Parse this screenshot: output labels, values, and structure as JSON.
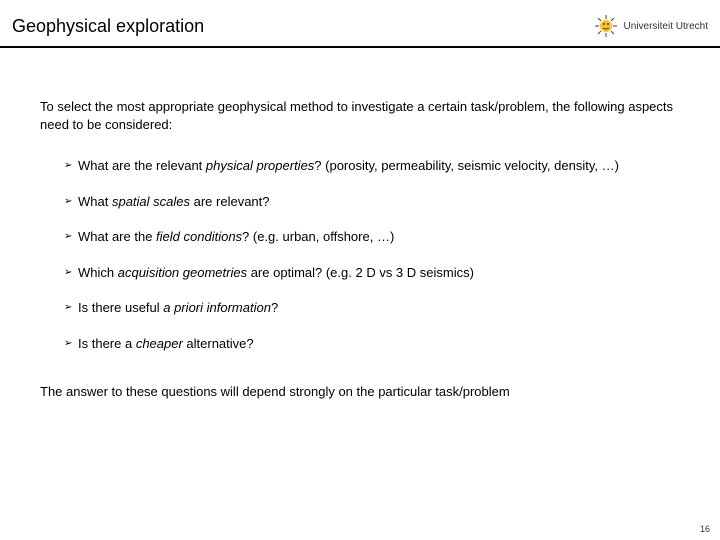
{
  "header": {
    "title": "Geophysical exploration",
    "institution": "Universiteit Utrecht"
  },
  "intro": "To select the most appropriate geophysical method to investigate a certain task/problem, the following aspects need to be considered:",
  "bullets": [
    {
      "pre": "What are the relevant ",
      "em": "physical properties",
      "post": "? (porosity, permeability, seismic velocity, density, …)"
    },
    {
      "pre": "What ",
      "em": "spatial scales",
      "post": " are relevant?"
    },
    {
      "pre": "What are the ",
      "em": "field conditions",
      "post": "? (e.g. urban, offshore, …)"
    },
    {
      "pre": "Which ",
      "em": "acquisition geometries",
      "post": " are optimal? (e.g. 2 D vs 3 D seismics)"
    },
    {
      "pre": "Is there useful ",
      "em": "a priori information",
      "post": "?"
    },
    {
      "pre": "Is there a ",
      "em": "cheaper",
      "post": " alternative?"
    }
  ],
  "closing": "The answer to these questions will depend strongly on the particular task/problem",
  "page_number": "16",
  "colors": {
    "text": "#000000",
    "bg": "#ffffff",
    "logo_yellow": "#f4c430",
    "logo_dark": "#5a3a1a"
  }
}
